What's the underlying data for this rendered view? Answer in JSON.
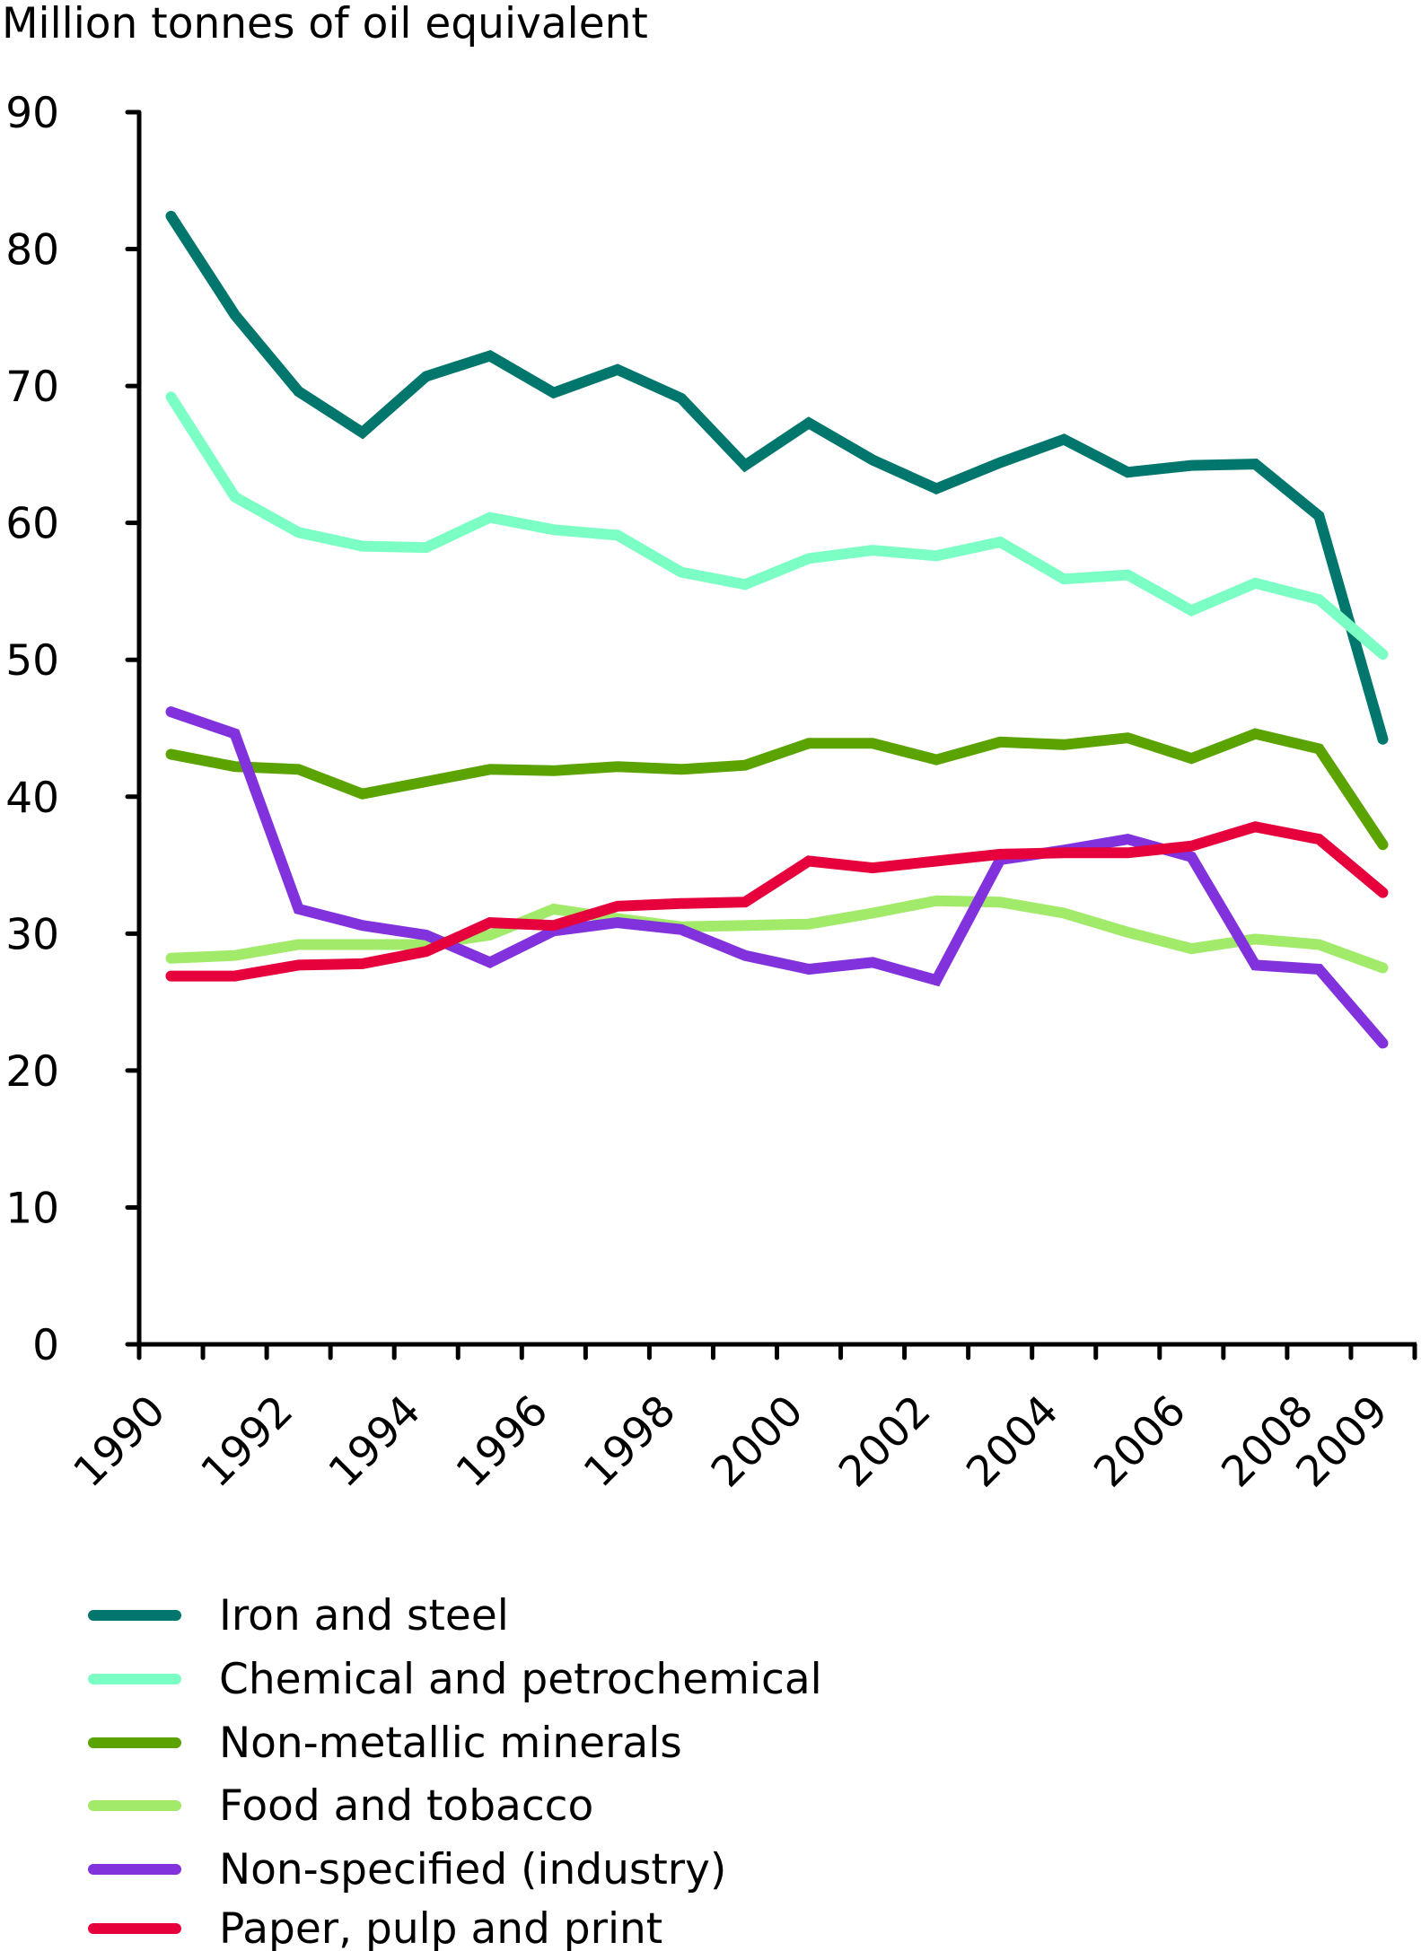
{
  "chart_data": {
    "type": "line",
    "title": "",
    "xlabel": "",
    "ylabel": "Million tonnes of oil equivalent",
    "ylim": [
      0,
      90
    ],
    "yticks": [
      0,
      10,
      20,
      30,
      40,
      50,
      60,
      70,
      80,
      90
    ],
    "x": [
      1990,
      1991,
      1992,
      1993,
      1994,
      1995,
      1996,
      1997,
      1998,
      1999,
      2000,
      2001,
      2002,
      2003,
      2004,
      2005,
      2006,
      2007,
      2008,
      2009
    ],
    "xtick_labels": [
      "1990",
      "1992",
      "1994",
      "1996",
      "1998",
      "2000",
      "2002",
      "2004",
      "2006",
      "2008",
      "2009"
    ],
    "grid": false,
    "legend_position": "bottom",
    "series": [
      {
        "name": "Iron and steel",
        "color": "#00766C",
        "values": [
          82.4,
          75.2,
          69.6,
          66.6,
          70.7,
          72.2,
          69.5,
          71.2,
          69.1,
          64.2,
          67.3,
          64.6,
          62.5,
          64.4,
          66.1,
          63.7,
          64.2,
          64.3,
          60.5,
          44.2
        ]
      },
      {
        "name": "Chemical and petrochemical",
        "color": "#7CFFC4",
        "values": [
          69.2,
          61.9,
          59.3,
          58.3,
          58.2,
          60.4,
          59.5,
          59.1,
          56.4,
          55.5,
          57.4,
          58.0,
          57.6,
          58.6,
          55.9,
          56.2,
          53.6,
          55.6,
          54.4,
          50.4
        ]
      },
      {
        "name": "Non-metallic minerals",
        "color": "#5BA300",
        "values": [
          43.1,
          42.2,
          42.0,
          40.2,
          41.1,
          42.0,
          41.9,
          42.2,
          42.0,
          42.3,
          43.9,
          43.9,
          42.7,
          44.0,
          43.8,
          44.3,
          42.8,
          44.6,
          43.5,
          36.5
        ]
      },
      {
        "name": "Food and tobacco",
        "color": "#A2EA6A",
        "values": [
          28.2,
          28.4,
          29.2,
          29.2,
          29.2,
          29.9,
          31.8,
          31.1,
          30.5,
          30.6,
          30.7,
          31.5,
          32.4,
          32.3,
          31.5,
          30.1,
          28.9,
          29.6,
          29.2,
          27.5
        ]
      },
      {
        "name": "Non-specified (industry)",
        "color": "#8232DC",
        "values": [
          46.2,
          44.6,
          31.8,
          30.6,
          29.9,
          27.9,
          30.2,
          30.8,
          30.3,
          28.4,
          27.4,
          27.9,
          26.6,
          35.4,
          36.1,
          36.9,
          35.6,
          27.7,
          27.4,
          22.0
        ]
      },
      {
        "name": "Paper, pulp and print",
        "color": "#E6003C",
        "values": [
          26.9,
          26.9,
          27.7,
          27.8,
          28.7,
          30.8,
          30.6,
          32.0,
          32.2,
          32.3,
          35.3,
          34.8,
          35.3,
          35.8,
          35.9,
          35.9,
          36.4,
          37.8,
          36.9,
          33.0
        ]
      }
    ]
  }
}
